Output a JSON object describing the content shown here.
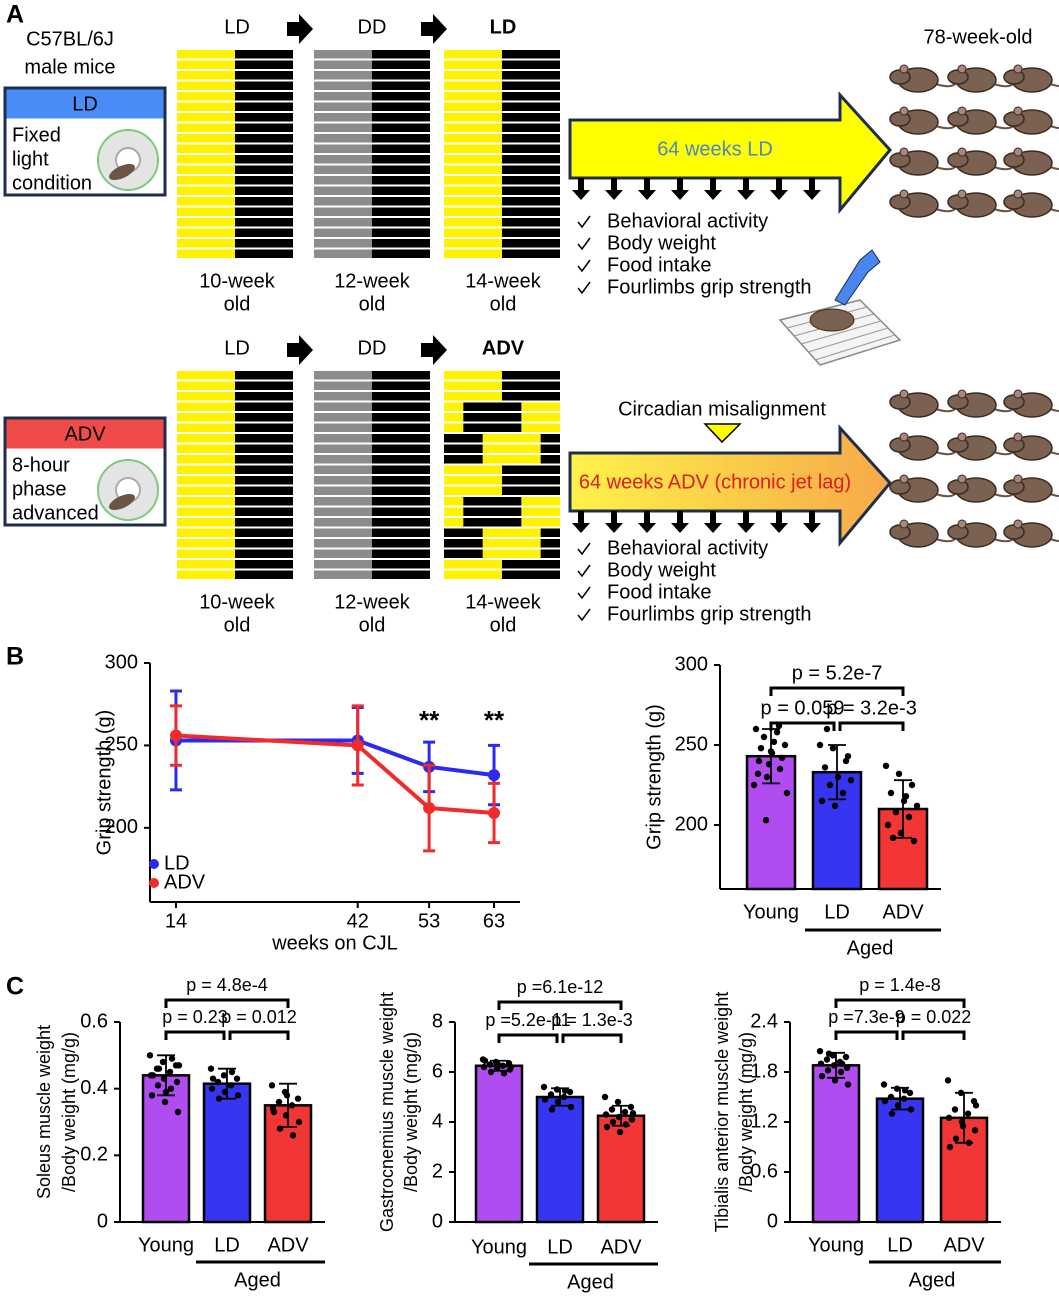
{
  "panel_labels": [
    "A",
    "B",
    "C"
  ],
  "panel_a": {
    "strain": [
      "C57BL/6J",
      "male mice"
    ],
    "endpoint_label": "78-week-old",
    "rows": [
      {
        "condition": "LD",
        "description": [
          "Fixed",
          "light",
          "condition"
        ],
        "phases": [
          "LD",
          "DD",
          "LD"
        ],
        "ages": [
          [
            "10-week",
            "old"
          ],
          [
            "12-week",
            "old"
          ],
          [
            "14-week",
            "old"
          ]
        ],
        "arrow_text": "64 weeks LD",
        "measurements": [
          "Behavioral activity",
          "Body weight",
          "Food intake",
          "Fourlimbs grip strength"
        ]
      },
      {
        "condition": "ADV",
        "description": [
          "8-hour",
          "phase",
          "advanced"
        ],
        "phases": [
          "LD",
          "DD",
          "ADV"
        ],
        "ages": [
          [
            "10-week",
            "old"
          ],
          [
            "12-week",
            "old"
          ],
          [
            "14-week",
            "old"
          ]
        ],
        "note": "Circadian misalignment",
        "arrow_text": "64 weeks ADV (chronic jet lag)",
        "measurements": [
          "Behavioral activity",
          "Body weight",
          "Food intake",
          "Fourlimbs grip strength"
        ]
      }
    ]
  },
  "chart_data": [
    {
      "type": "line",
      "x_label": "weeks on CJL",
      "y_label": [
        "Grip strength (g)"
      ],
      "x": [
        14,
        42,
        53,
        63
      ],
      "xlim": [
        10,
        67
      ],
      "xticks": [
        14,
        42,
        53,
        63
      ],
      "ylim": [
        155,
        300
      ],
      "yticks": [
        200,
        250,
        300
      ],
      "legend": "lower left",
      "series": [
        {
          "name": "LD",
          "color": "#2b2bf0",
          "values": [
            253,
            253,
            237,
            232
          ],
          "errors": [
            30,
            20,
            15,
            18
          ]
        },
        {
          "name": "ADV",
          "color": "#f02b2b",
          "values": [
            256,
            250,
            212,
            209
          ],
          "errors": [
            18,
            24,
            26,
            18
          ]
        }
      ],
      "annotations": [
        {
          "text": "**",
          "x": 53
        },
        {
          "text": "**",
          "x": 63
        }
      ]
    },
    {
      "type": "bar",
      "y_label": [
        "Grip strength (g)"
      ],
      "categories": [
        "Young",
        "LD",
        "ADV"
      ],
      "group_label": "Aged",
      "colors": [
        "#b04cf0",
        "#3535f2",
        "#f23535"
      ],
      "ylim": [
        160,
        300
      ],
      "yticks": [
        200,
        250,
        300
      ],
      "values": [
        243,
        233,
        210
      ],
      "errors": [
        17,
        17,
        18
      ],
      "points": [
        [
          225,
          230,
          235,
          240,
          245,
          250,
          255,
          258,
          260,
          238,
          242,
          248,
          252,
          220,
          203,
          262,
          232,
          246
        ],
        [
          250,
          248,
          240,
          236,
          230,
          228,
          225,
          220,
          215,
          212,
          243,
          260
        ],
        [
          237,
          232,
          225,
          220,
          215,
          212,
          208,
          205,
          200,
          195,
          190,
          192,
          218
        ]
      ],
      "comparisons": [
        "p = 5.2e-7",
        "p = 0.059",
        "p = 3.2e-3"
      ]
    },
    {
      "type": "bar",
      "y_label": [
        "Soleus muscle weight",
        "/Body weight (mg/g)"
      ],
      "categories": [
        "Young",
        "LD",
        "ADV"
      ],
      "group_label": "Aged",
      "colors": [
        "#b04cf0",
        "#3535f2",
        "#f23535"
      ],
      "ylim": [
        0,
        0.6
      ],
      "yticks": [
        0,
        0.2,
        0.4,
        0.6
      ],
      "values": [
        0.44,
        0.415,
        0.35
      ],
      "errors": [
        0.06,
        0.045,
        0.065
      ],
      "points": [
        [
          0.5,
          0.48,
          0.47,
          0.46,
          0.45,
          0.44,
          0.43,
          0.42,
          0.41,
          0.4,
          0.38,
          0.36,
          0.33,
          0.46,
          0.49,
          0.44,
          0.39,
          0.47
        ],
        [
          0.46,
          0.44,
          0.43,
          0.42,
          0.41,
          0.4,
          0.39,
          0.38,
          0.37,
          0.45,
          0.43
        ],
        [
          0.41,
          0.39,
          0.37,
          0.36,
          0.35,
          0.34,
          0.32,
          0.3,
          0.28,
          0.26,
          0.33,
          0.38
        ]
      ],
      "comparisons": [
        "p = 4.8e-4",
        "p = 0.23",
        "p = 0.012"
      ]
    },
    {
      "type": "bar",
      "y_label": [
        "Gastrocnemius muscle weight",
        "/Body weight (mg/g)"
      ],
      "categories": [
        "Young",
        "LD",
        "ADV"
      ],
      "group_label": "Aged",
      "colors": [
        "#b04cf0",
        "#3535f2",
        "#f23535"
      ],
      "ylim": [
        0,
        8
      ],
      "yticks": [
        0,
        2,
        4,
        6,
        8
      ],
      "values": [
        6.25,
        5.0,
        4.25
      ],
      "errors": [
        0.2,
        0.35,
        0.4
      ],
      "points": [
        [
          6.5,
          6.4,
          6.35,
          6.3,
          6.25,
          6.2,
          6.15,
          6.1,
          6.0,
          5.95,
          6.45,
          6.3,
          6.2
        ],
        [
          5.4,
          5.3,
          5.2,
          5.1,
          5.0,
          4.9,
          4.8,
          4.6,
          4.5,
          5.25
        ],
        [
          5.0,
          4.8,
          4.6,
          4.5,
          4.4,
          4.3,
          4.2,
          4.1,
          4.0,
          3.9,
          3.8,
          3.6,
          4.35
        ]
      ],
      "comparisons": [
        "p =6.1e-12",
        "p =5.2e-11",
        "p = 1.3e-3"
      ]
    },
    {
      "type": "bar",
      "y_label": [
        "Tibialis anterior muscle weight",
        "/Body weight (mg/g)"
      ],
      "categories": [
        "Young",
        "LD",
        "ADV"
      ],
      "group_label": "Aged",
      "colors": [
        "#b04cf0",
        "#3535f2",
        "#f23535"
      ],
      "ylim": [
        0,
        2.4
      ],
      "yticks": [
        0,
        0.6,
        1.2,
        1.8,
        2.4
      ],
      "values": [
        1.88,
        1.48,
        1.25
      ],
      "errors": [
        0.15,
        0.13,
        0.3
      ],
      "points": [
        [
          2.05,
          2.0,
          1.98,
          1.95,
          1.92,
          1.9,
          1.88,
          1.85,
          1.82,
          1.8,
          1.75,
          1.7,
          1.65,
          2.02,
          1.9
        ],
        [
          1.65,
          1.6,
          1.55,
          1.5,
          1.48,
          1.45,
          1.4,
          1.35,
          1.3,
          1.58
        ],
        [
          1.7,
          1.55,
          1.45,
          1.35,
          1.3,
          1.25,
          1.2,
          1.1,
          1.0,
          0.95,
          0.9,
          1.15,
          1.4
        ]
      ],
      "comparisons": [
        "p = 1.4e-8",
        "p =7.3e-9",
        "p = 0.022"
      ]
    }
  ]
}
